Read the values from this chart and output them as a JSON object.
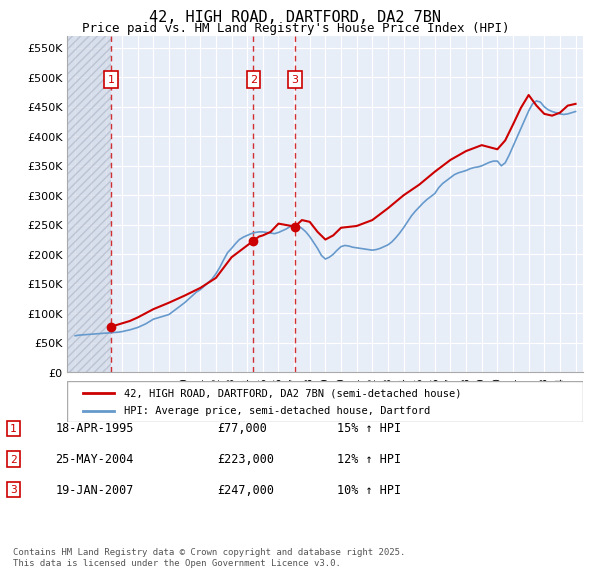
{
  "title": "42, HIGH ROAD, DARTFORD, DA2 7BN",
  "subtitle": "Price paid vs. HM Land Registry's House Price Index (HPI)",
  "xlabel": "",
  "ylabel": "",
  "ylim": [
    0,
    570000
  ],
  "yticks": [
    0,
    50000,
    100000,
    150000,
    200000,
    250000,
    300000,
    350000,
    400000,
    450000,
    500000,
    550000
  ],
  "ytick_labels": [
    "£0",
    "£50K",
    "£100K",
    "£150K",
    "£200K",
    "£250K",
    "£300K",
    "£350K",
    "£400K",
    "£450K",
    "£500K",
    "£550K"
  ],
  "background_color": "#ffffff",
  "plot_bg_color": "#e8eef8",
  "hatch_color": "#cccccc",
  "grid_color": "#ffffff",
  "red_line_color": "#cc0000",
  "blue_line_color": "#6699cc",
  "sale_marker_color": "#cc0000",
  "vline_color": "#cc0000",
  "sale_box_color": "#cc0000",
  "legend_label_red": "42, HIGH ROAD, DARTFORD, DA2 7BN (semi-detached house)",
  "legend_label_blue": "HPI: Average price, semi-detached house, Dartford",
  "sales": [
    {
      "num": 1,
      "date_num": 1995.3,
      "price": 77000,
      "label": "18-APR-1995",
      "pct": "15%",
      "dir": "↑"
    },
    {
      "num": 2,
      "date_num": 2004.4,
      "price": 223000,
      "label": "25-MAY-2004",
      "pct": "12%",
      "dir": "↑"
    },
    {
      "num": 3,
      "date_num": 2007.05,
      "price": 247000,
      "label": "19-JAN-2007",
      "pct": "10%",
      "dir": "↑"
    }
  ],
  "table_rows": [
    [
      "1",
      "18-APR-1995",
      "£77,000",
      "15% ↑ HPI"
    ],
    [
      "2",
      "25-MAY-2004",
      "£223,000",
      "12% ↑ HPI"
    ],
    [
      "3",
      "19-JAN-2007",
      "£247,000",
      "10% ↑ HPI"
    ]
  ],
  "footnote": "Contains HM Land Registry data © Crown copyright and database right 2025.\nThis data is licensed under the Open Government Licence v3.0.",
  "hpi_data": {
    "years": [
      1993,
      1993.25,
      1993.5,
      1993.75,
      1994,
      1994.25,
      1994.5,
      1994.75,
      1995,
      1995.25,
      1995.5,
      1995.75,
      1996,
      1996.25,
      1996.5,
      1996.75,
      1997,
      1997.25,
      1997.5,
      1997.75,
      1998,
      1998.25,
      1998.5,
      1998.75,
      1999,
      1999.25,
      1999.5,
      1999.75,
      2000,
      2000.25,
      2000.5,
      2000.75,
      2001,
      2001.25,
      2001.5,
      2001.75,
      2002,
      2002.25,
      2002.5,
      2002.75,
      2003,
      2003.25,
      2003.5,
      2003.75,
      2004,
      2004.25,
      2004.5,
      2004.75,
      2005,
      2005.25,
      2005.5,
      2005.75,
      2006,
      2006.25,
      2006.5,
      2006.75,
      2007,
      2007.25,
      2007.5,
      2007.75,
      2008,
      2008.25,
      2008.5,
      2008.75,
      2009,
      2009.25,
      2009.5,
      2009.75,
      2010,
      2010.25,
      2010.5,
      2010.75,
      2011,
      2011.25,
      2011.5,
      2011.75,
      2012,
      2012.25,
      2012.5,
      2012.75,
      2013,
      2013.25,
      2013.5,
      2013.75,
      2014,
      2014.25,
      2014.5,
      2014.75,
      2015,
      2015.25,
      2015.5,
      2015.75,
      2016,
      2016.25,
      2016.5,
      2016.75,
      2017,
      2017.25,
      2017.5,
      2017.75,
      2018,
      2018.25,
      2018.5,
      2018.75,
      2019,
      2019.25,
      2019.5,
      2019.75,
      2020,
      2020.25,
      2020.5,
      2020.75,
      2021,
      2021.25,
      2021.5,
      2021.75,
      2022,
      2022.25,
      2022.5,
      2022.75,
      2023,
      2023.25,
      2023.5,
      2023.75,
      2024,
      2024.25,
      2024.5,
      2024.75,
      2025
    ],
    "values": [
      62000,
      63000,
      63500,
      64000,
      64500,
      65000,
      65500,
      66000,
      66500,
      67000,
      67500,
      68000,
      69000,
      70500,
      72000,
      74000,
      76000,
      79000,
      82000,
      86000,
      90000,
      92000,
      94000,
      96000,
      98000,
      103000,
      108000,
      113000,
      118000,
      124000,
      130000,
      136000,
      140000,
      146000,
      152000,
      158000,
      167000,
      178000,
      191000,
      203000,
      210000,
      218000,
      225000,
      229000,
      232000,
      235000,
      237000,
      238000,
      238000,
      237000,
      236000,
      235000,
      237000,
      240000,
      243000,
      247000,
      250000,
      248000,
      244000,
      238000,
      230000,
      220000,
      210000,
      198000,
      192000,
      195000,
      200000,
      207000,
      213000,
      215000,
      214000,
      212000,
      211000,
      210000,
      209000,
      208000,
      207000,
      208000,
      210000,
      213000,
      216000,
      221000,
      228000,
      236000,
      245000,
      255000,
      265000,
      273000,
      280000,
      287000,
      293000,
      298000,
      303000,
      313000,
      320000,
      325000,
      330000,
      335000,
      338000,
      340000,
      342000,
      345000,
      347000,
      348000,
      350000,
      353000,
      356000,
      358000,
      358000,
      350000,
      355000,
      368000,
      383000,
      398000,
      413000,
      428000,
      443000,
      455000,
      460000,
      458000,
      450000,
      445000,
      442000,
      440000,
      438000,
      437000,
      438000,
      440000,
      442000
    ]
  },
  "price_data": {
    "years": [
      1995.3,
      1995.5,
      1996,
      1996.5,
      1997,
      1997.5,
      1998,
      1999,
      2000,
      2001,
      2002,
      2003,
      2004.4,
      2004.75,
      2005,
      2005.5,
      2006,
      2007.05,
      2007.5,
      2008,
      2008.5,
      2009,
      2009.5,
      2010,
      2011,
      2012,
      2013,
      2014,
      2015,
      2016,
      2017,
      2018,
      2019,
      2020,
      2020.5,
      2021,
      2021.5,
      2022,
      2022.5,
      2023,
      2023.5,
      2024,
      2024.5,
      2025
    ],
    "values": [
      77000,
      79000,
      83000,
      87000,
      93000,
      100000,
      107000,
      118000,
      130000,
      143000,
      160000,
      195000,
      223000,
      230000,
      232000,
      238000,
      252000,
      247000,
      258000,
      255000,
      238000,
      225000,
      232000,
      245000,
      248000,
      258000,
      278000,
      300000,
      318000,
      340000,
      360000,
      375000,
      385000,
      378000,
      393000,
      420000,
      448000,
      470000,
      452000,
      438000,
      435000,
      440000,
      452000,
      455000
    ]
  },
  "xlim": [
    1992.5,
    2025.5
  ],
  "xticks": [
    1993,
    1994,
    1995,
    1996,
    1997,
    1998,
    1999,
    2000,
    2001,
    2002,
    2003,
    2004,
    2005,
    2006,
    2007,
    2008,
    2009,
    2010,
    2011,
    2012,
    2013,
    2014,
    2015,
    2016,
    2017,
    2018,
    2019,
    2020,
    2021,
    2022,
    2023,
    2024,
    2025
  ]
}
